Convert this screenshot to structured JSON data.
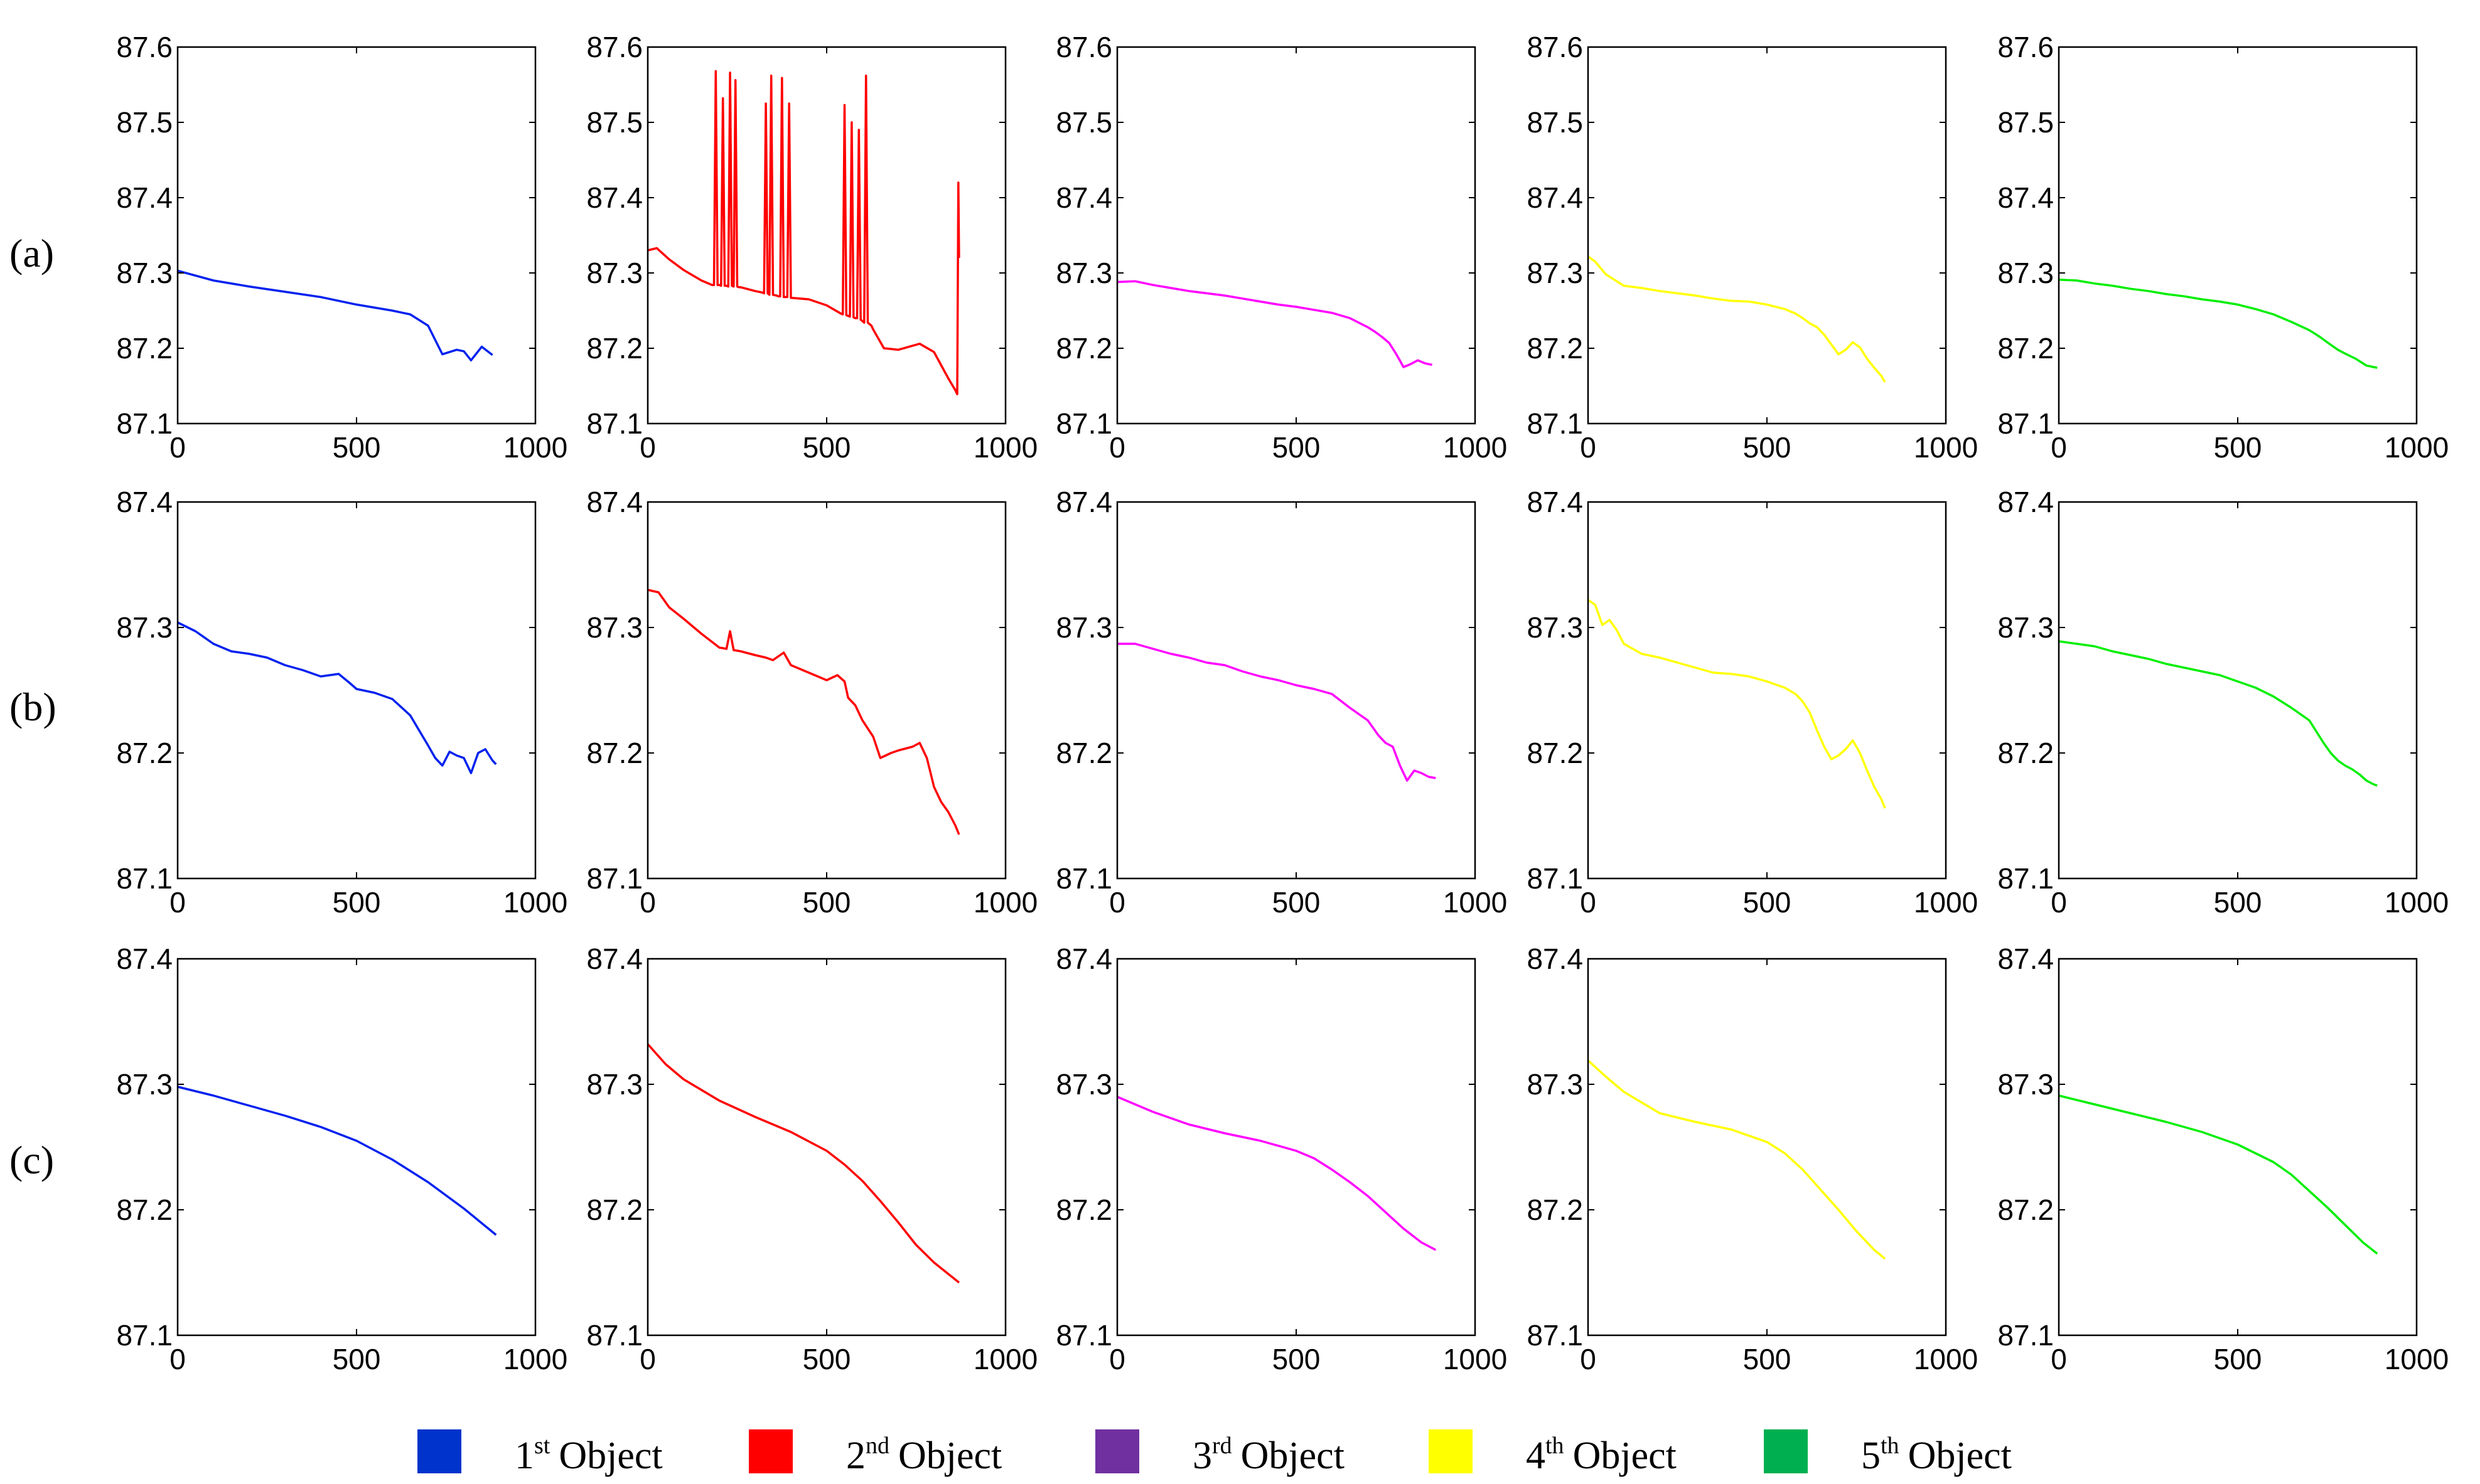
{
  "row_labels": [
    "(a)",
    "(b)",
    "(c)"
  ],
  "legend": [
    {
      "num": "1",
      "sup": "st",
      "label": "Object",
      "color": "#0033cc"
    },
    {
      "num": "2",
      "sup": "nd",
      "label": "Object",
      "color": "#ff0000"
    },
    {
      "num": "3",
      "sup": "rd",
      "label": "Object",
      "color": "#7030a0"
    },
    {
      "num": "4",
      "sup": "th",
      "label": "Object",
      "color": "#ffff00"
    },
    {
      "num": "5",
      "sup": "th",
      "label": "Object",
      "color": "#00b050"
    }
  ],
  "chart_data": [
    {
      "type": "line",
      "row": "(a)",
      "object": 1,
      "color": "#0022ee",
      "xlim": [
        0,
        1000
      ],
      "ylim": [
        87.1,
        87.6
      ],
      "xticks": [
        "0",
        "500",
        "1000"
      ],
      "yticks": [
        "87.1",
        "87.2",
        "87.3",
        "87.4",
        "87.5",
        "87.6"
      ],
      "x": [
        0,
        100,
        200,
        300,
        400,
        450,
        500,
        600,
        650,
        700,
        740,
        780,
        800,
        820,
        850,
        880
      ],
      "y": [
        87.303,
        87.29,
        87.282,
        87.275,
        87.268,
        87.263,
        87.258,
        87.25,
        87.245,
        87.23,
        87.192,
        87.198,
        87.196,
        87.184,
        87.202,
        87.191
      ]
    },
    {
      "type": "line",
      "row": "(a)",
      "object": 2,
      "color": "#ff0000",
      "xlim": [
        0,
        1000
      ],
      "ylim": [
        87.1,
        87.6
      ],
      "xticks": [
        "0",
        "500",
        "1000"
      ],
      "yticks": [
        "87.1",
        "87.2",
        "87.3",
        "87.4",
        "87.5",
        "87.6"
      ],
      "x": [
        0,
        25,
        60,
        100,
        150,
        180,
        185,
        190,
        195,
        200,
        205,
        210,
        215,
        220,
        225,
        230,
        235,
        240,
        245,
        250,
        255,
        260,
        300,
        320,
        325,
        330,
        335,
        340,
        345,
        350,
        360,
        365,
        370,
        375,
        380,
        385,
        390,
        395,
        400,
        450,
        500,
        540,
        545,
        550,
        555,
        560,
        565,
        570,
        575,
        580,
        585,
        590,
        595,
        600,
        605,
        610,
        615,
        620,
        625,
        630,
        660,
        700,
        760,
        800,
        840,
        860,
        865,
        868,
        870
      ],
      "y": [
        87.33,
        87.333,
        87.318,
        87.304,
        87.29,
        87.284,
        87.284,
        87.568,
        87.284,
        87.284,
        87.283,
        87.532,
        87.283,
        87.283,
        87.282,
        87.566,
        87.283,
        87.282,
        87.556,
        87.282,
        87.281,
        87.281,
        87.276,
        87.274,
        87.273,
        87.525,
        87.273,
        87.271,
        87.562,
        87.271,
        87.27,
        87.269,
        87.269,
        87.559,
        87.268,
        87.268,
        87.268,
        87.525,
        87.267,
        87.265,
        87.257,
        87.246,
        87.245,
        87.523,
        87.244,
        87.243,
        87.242,
        87.5,
        87.241,
        87.24,
        87.24,
        87.49,
        87.238,
        87.236,
        87.234,
        87.562,
        87.234,
        87.232,
        87.23,
        87.225,
        87.2,
        87.198,
        87.206,
        87.195,
        87.16,
        87.144,
        87.139,
        87.42,
        87.32
      ]
    },
    {
      "type": "line",
      "row": "(a)",
      "object": 3,
      "color": "#ff00ff",
      "xlim": [
        0,
        1000
      ],
      "ylim": [
        87.1,
        87.6
      ],
      "xticks": [
        "0",
        "500",
        "1000"
      ],
      "yticks": [
        "87.1",
        "87.2",
        "87.3",
        "87.4",
        "87.5",
        "87.6"
      ],
      "x": [
        0,
        50,
        100,
        150,
        200,
        250,
        300,
        350,
        400,
        450,
        500,
        550,
        600,
        650,
        700,
        720,
        740,
        760,
        780,
        800,
        820,
        840,
        860,
        880
      ],
      "y": [
        87.288,
        87.289,
        87.284,
        87.28,
        87.276,
        87.273,
        87.27,
        87.266,
        87.262,
        87.258,
        87.255,
        87.251,
        87.247,
        87.24,
        87.228,
        87.222,
        87.215,
        87.207,
        87.192,
        87.175,
        87.179,
        87.184,
        87.18,
        87.178
      ]
    },
    {
      "type": "line",
      "row": "(a)",
      "object": 4,
      "color": "#ffff00",
      "xlim": [
        0,
        1000
      ],
      "ylim": [
        87.1,
        87.6
      ],
      "xticks": [
        "0",
        "500",
        "1000"
      ],
      "yticks": [
        "87.1",
        "87.2",
        "87.3",
        "87.4",
        "87.5",
        "87.6"
      ],
      "x": [
        0,
        20,
        50,
        100,
        150,
        200,
        250,
        300,
        350,
        400,
        450,
        500,
        550,
        580,
        600,
        620,
        640,
        660,
        680,
        700,
        720,
        740,
        760,
        780,
        800,
        820,
        830
      ],
      "y": [
        87.322,
        87.315,
        87.298,
        87.283,
        87.28,
        87.276,
        87.273,
        87.27,
        87.266,
        87.263,
        87.262,
        87.258,
        87.252,
        87.246,
        87.24,
        87.233,
        87.228,
        87.218,
        87.205,
        87.192,
        87.198,
        87.208,
        87.201,
        87.186,
        87.174,
        87.163,
        87.155
      ]
    },
    {
      "type": "line",
      "row": "(a)",
      "object": 5,
      "color": "#00ee00",
      "xlim": [
        0,
        1000
      ],
      "ylim": [
        87.1,
        87.6
      ],
      "xticks": [
        "0",
        "500",
        "1000"
      ],
      "yticks": [
        "87.1",
        "87.2",
        "87.3",
        "87.4",
        "87.5",
        "87.6"
      ],
      "x": [
        0,
        50,
        100,
        150,
        200,
        250,
        300,
        350,
        400,
        450,
        500,
        550,
        600,
        650,
        700,
        730,
        750,
        780,
        800,
        830,
        860,
        880,
        890
      ],
      "y": [
        87.291,
        87.29,
        87.286,
        87.283,
        87.279,
        87.276,
        87.272,
        87.269,
        87.265,
        87.262,
        87.258,
        87.252,
        87.245,
        87.235,
        87.224,
        87.215,
        87.208,
        87.198,
        87.193,
        87.186,
        87.177,
        87.175,
        87.174
      ]
    },
    {
      "type": "line",
      "row": "(b)",
      "object": 1,
      "color": "#0022ee",
      "xlim": [
        0,
        1000
      ],
      "ylim": [
        87.1,
        87.4
      ],
      "xticks": [
        "0",
        "500",
        "1000"
      ],
      "yticks": [
        "87.1",
        "87.2",
        "87.3",
        "87.4"
      ],
      "x": [
        0,
        50,
        100,
        150,
        200,
        250,
        300,
        350,
        400,
        450,
        480,
        500,
        550,
        600,
        650,
        700,
        720,
        740,
        760,
        780,
        800,
        820,
        840,
        860,
        880,
        890
      ],
      "y": [
        87.304,
        87.297,
        87.287,
        87.281,
        87.279,
        87.276,
        87.27,
        87.266,
        87.261,
        87.263,
        87.256,
        87.251,
        87.248,
        87.243,
        87.23,
        87.206,
        87.196,
        87.19,
        87.201,
        87.198,
        87.196,
        87.184,
        87.2,
        87.203,
        87.194,
        87.191
      ]
    },
    {
      "type": "line",
      "row": "(b)",
      "object": 2,
      "color": "#ff0000",
      "xlim": [
        0,
        1000
      ],
      "ylim": [
        87.1,
        87.4
      ],
      "xticks": [
        "0",
        "500",
        "1000"
      ],
      "yticks": [
        "87.1",
        "87.2",
        "87.3",
        "87.4"
      ],
      "x": [
        0,
        30,
        60,
        100,
        150,
        200,
        220,
        230,
        240,
        260,
        300,
        330,
        350,
        380,
        400,
        450,
        500,
        530,
        550,
        560,
        580,
        600,
        630,
        650,
        680,
        700,
        740,
        760,
        780,
        800,
        820,
        840,
        860,
        870
      ],
      "y": [
        87.33,
        87.328,
        87.316,
        87.307,
        87.295,
        87.284,
        87.283,
        87.297,
        87.282,
        87.281,
        87.278,
        87.276,
        87.274,
        87.28,
        87.27,
        87.264,
        87.258,
        87.262,
        87.257,
        87.244,
        87.238,
        87.226,
        87.213,
        87.196,
        87.2,
        87.202,
        87.205,
        87.208,
        87.196,
        87.173,
        87.161,
        87.153,
        87.142,
        87.135
      ]
    },
    {
      "type": "line",
      "row": "(b)",
      "object": 3,
      "color": "#ff00ff",
      "xlim": [
        0,
        1000
      ],
      "ylim": [
        87.1,
        87.4
      ],
      "xticks": [
        "0",
        "500",
        "1000"
      ],
      "yticks": [
        "87.1",
        "87.2",
        "87.3",
        "87.4"
      ],
      "x": [
        0,
        50,
        100,
        150,
        200,
        250,
        300,
        350,
        400,
        450,
        500,
        550,
        600,
        650,
        700,
        730,
        750,
        770,
        790,
        810,
        830,
        850,
        870,
        890
      ],
      "y": [
        87.287,
        87.287,
        87.283,
        87.279,
        87.276,
        87.272,
        87.27,
        87.265,
        87.261,
        87.258,
        87.254,
        87.251,
        87.247,
        87.236,
        87.226,
        87.214,
        87.208,
        87.205,
        87.19,
        87.178,
        87.186,
        87.184,
        87.181,
        87.18
      ]
    },
    {
      "type": "line",
      "row": "(b)",
      "object": 4,
      "color": "#ffff00",
      "xlim": [
        0,
        1000
      ],
      "ylim": [
        87.1,
        87.4
      ],
      "xticks": [
        "0",
        "500",
        "1000"
      ],
      "yticks": [
        "87.1",
        "87.2",
        "87.3",
        "87.4"
      ],
      "x": [
        0,
        20,
        40,
        60,
        80,
        100,
        150,
        200,
        250,
        300,
        350,
        400,
        450,
        500,
        550,
        580,
        600,
        620,
        640,
        660,
        680,
        700,
        720,
        740,
        760,
        780,
        800,
        820,
        830
      ],
      "y": [
        87.322,
        87.318,
        87.302,
        87.306,
        87.298,
        87.287,
        87.279,
        87.276,
        87.272,
        87.268,
        87.264,
        87.263,
        87.261,
        87.257,
        87.252,
        87.247,
        87.241,
        87.232,
        87.218,
        87.205,
        87.195,
        87.198,
        87.203,
        87.21,
        87.2,
        87.186,
        87.173,
        87.163,
        87.156
      ]
    },
    {
      "type": "line",
      "row": "(b)",
      "object": 5,
      "color": "#00ee00",
      "xlim": [
        0,
        1000
      ],
      "ylim": [
        87.1,
        87.4
      ],
      "xticks": [
        "0",
        "500",
        "1000"
      ],
      "yticks": [
        "87.1",
        "87.2",
        "87.3",
        "87.4"
      ],
      "x": [
        0,
        50,
        100,
        150,
        200,
        250,
        300,
        350,
        400,
        450,
        500,
        550,
        600,
        650,
        700,
        720,
        740,
        760,
        780,
        800,
        820,
        840,
        860,
        880,
        890
      ],
      "y": [
        87.289,
        87.287,
        87.285,
        87.281,
        87.278,
        87.275,
        87.271,
        87.268,
        87.265,
        87.262,
        87.257,
        87.252,
        87.245,
        87.236,
        87.226,
        87.217,
        87.208,
        87.2,
        87.194,
        87.19,
        87.187,
        87.183,
        87.178,
        87.175,
        87.174
      ]
    },
    {
      "type": "line",
      "row": "(c)",
      "object": 1,
      "color": "#0022ee",
      "xlim": [
        0,
        1000
      ],
      "ylim": [
        87.1,
        87.4
      ],
      "xticks": [
        "0",
        "500",
        "1000"
      ],
      "yticks": [
        "87.1",
        "87.2",
        "87.3",
        "87.4"
      ],
      "x": [
        0,
        100,
        200,
        300,
        400,
        500,
        600,
        700,
        800,
        890
      ],
      "y": [
        87.298,
        87.291,
        87.283,
        87.275,
        87.266,
        87.255,
        87.24,
        87.222,
        87.201,
        87.18
      ]
    },
    {
      "type": "line",
      "row": "(c)",
      "object": 2,
      "color": "#ff0000",
      "xlim": [
        0,
        1000
      ],
      "ylim": [
        87.1,
        87.4
      ],
      "xticks": [
        "0",
        "500",
        "1000"
      ],
      "yticks": [
        "87.1",
        "87.2",
        "87.3",
        "87.4"
      ],
      "x": [
        0,
        50,
        100,
        200,
        300,
        400,
        500,
        550,
        600,
        650,
        700,
        750,
        800,
        870
      ],
      "y": [
        87.332,
        87.316,
        87.304,
        87.287,
        87.274,
        87.262,
        87.247,
        87.236,
        87.223,
        87.207,
        87.19,
        87.172,
        87.158,
        87.142
      ]
    },
    {
      "type": "line",
      "row": "(c)",
      "object": 3,
      "color": "#ff00ff",
      "xlim": [
        0,
        1000
      ],
      "ylim": [
        87.1,
        87.4
      ],
      "xticks": [
        "0",
        "500",
        "1000"
      ],
      "yticks": [
        "87.1",
        "87.2",
        "87.3",
        "87.4"
      ],
      "x": [
        0,
        50,
        100,
        200,
        300,
        400,
        500,
        550,
        600,
        650,
        700,
        750,
        800,
        850,
        890
      ],
      "y": [
        87.29,
        87.284,
        87.278,
        87.268,
        87.261,
        87.255,
        87.247,
        87.241,
        87.232,
        87.222,
        87.211,
        87.198,
        87.185,
        87.174,
        87.168
      ]
    },
    {
      "type": "line",
      "row": "(c)",
      "object": 4,
      "color": "#ffff00",
      "xlim": [
        0,
        1000
      ],
      "ylim": [
        87.1,
        87.4
      ],
      "xticks": [
        "0",
        "500",
        "1000"
      ],
      "yticks": [
        "87.1",
        "87.2",
        "87.3",
        "87.4"
      ],
      "x": [
        0,
        50,
        100,
        200,
        300,
        400,
        500,
        550,
        600,
        650,
        700,
        750,
        800,
        830
      ],
      "y": [
        87.319,
        87.306,
        87.294,
        87.277,
        87.27,
        87.264,
        87.254,
        87.245,
        87.232,
        87.216,
        87.2,
        87.183,
        87.168,
        87.161
      ]
    },
    {
      "type": "line",
      "row": "(c)",
      "object": 5,
      "color": "#00ee00",
      "xlim": [
        0,
        1000
      ],
      "ylim": [
        87.1,
        87.4
      ],
      "xticks": [
        "0",
        "500",
        "1000"
      ],
      "yticks": [
        "87.1",
        "87.2",
        "87.3",
        "87.4"
      ],
      "x": [
        0,
        100,
        200,
        300,
        400,
        500,
        600,
        650,
        700,
        750,
        800,
        850,
        890
      ],
      "y": [
        87.291,
        87.284,
        87.277,
        87.27,
        87.262,
        87.252,
        87.238,
        87.228,
        87.215,
        87.202,
        87.188,
        87.174,
        87.165
      ]
    }
  ]
}
